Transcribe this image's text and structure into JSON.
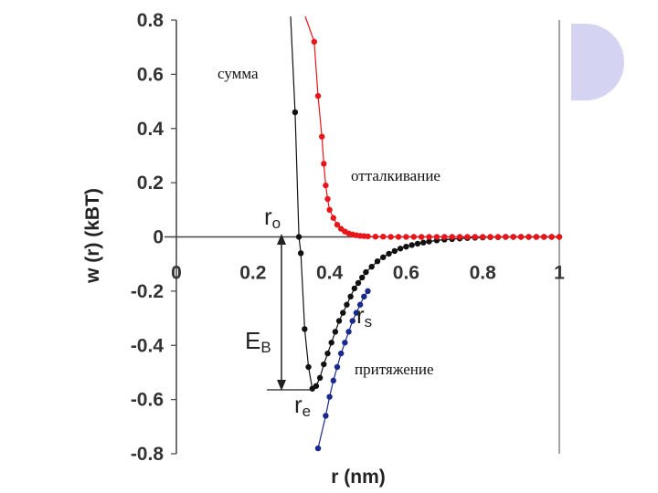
{
  "chart_data": {
    "type": "scatter",
    "title": "",
    "xlabel": "r (nm)",
    "ylabel": "w (r) (kBT)",
    "xlim": [
      0,
      1
    ],
    "ylim": [
      -0.8,
      0.8
    ],
    "x_ticks": [
      "0",
      "0.2",
      "0.4",
      "0.6",
      "0.8",
      "1"
    ],
    "y_ticks": [
      "0.8",
      "0.6",
      "0.4",
      "0.2",
      "0",
      "-0.2",
      "-0.4",
      "-0.6",
      "-0.8"
    ],
    "grid": false,
    "series": [
      {
        "name": "сумма",
        "color": "#111111",
        "points": [
          [
            0.31,
            0.46
          ],
          [
            0.32,
            0.0
          ],
          [
            0.325,
            -0.06
          ],
          [
            0.335,
            -0.34
          ],
          [
            0.345,
            -0.48
          ],
          [
            0.355,
            -0.56
          ],
          [
            0.365,
            -0.55
          ],
          [
            0.375,
            -0.52
          ],
          [
            0.385,
            -0.47
          ],
          [
            0.395,
            -0.43
          ],
          [
            0.405,
            -0.39
          ],
          [
            0.415,
            -0.35
          ],
          [
            0.425,
            -0.31
          ],
          [
            0.435,
            -0.28
          ],
          [
            0.445,
            -0.25
          ],
          [
            0.455,
            -0.22
          ],
          [
            0.465,
            -0.19
          ],
          [
            0.475,
            -0.17
          ],
          [
            0.485,
            -0.15
          ],
          [
            0.495,
            -0.13
          ],
          [
            0.51,
            -0.11
          ],
          [
            0.525,
            -0.09
          ],
          [
            0.54,
            -0.075
          ],
          [
            0.555,
            -0.062
          ],
          [
            0.57,
            -0.052
          ],
          [
            0.585,
            -0.043
          ],
          [
            0.6,
            -0.036
          ],
          [
            0.615,
            -0.03
          ],
          [
            0.63,
            -0.025
          ],
          [
            0.645,
            -0.021
          ],
          [
            0.66,
            -0.017
          ],
          [
            0.68,
            -0.013
          ],
          [
            0.7,
            -0.01
          ],
          [
            0.72,
            -0.008
          ],
          [
            0.74,
            -0.006
          ],
          [
            0.76,
            -0.004
          ],
          [
            0.78,
            -0.003
          ],
          [
            0.8,
            -0.002
          ],
          [
            0.82,
            -0.001
          ],
          [
            0.84,
            -0.001
          ],
          [
            0.86,
            0.0
          ],
          [
            0.88,
            0.0
          ],
          [
            0.9,
            0.0
          ],
          [
            0.92,
            0.0
          ],
          [
            0.94,
            0.0
          ],
          [
            0.96,
            0.0
          ],
          [
            0.98,
            0.0
          ],
          [
            1.0,
            0.0
          ]
        ]
      },
      {
        "name": "отталкивание",
        "color": "#e8161b",
        "points": [
          [
            0.36,
            0.72
          ],
          [
            0.37,
            0.52
          ],
          [
            0.38,
            0.37
          ],
          [
            0.385,
            0.27
          ],
          [
            0.39,
            0.19
          ],
          [
            0.395,
            0.14
          ],
          [
            0.4,
            0.1
          ],
          [
            0.41,
            0.07
          ],
          [
            0.42,
            0.045
          ],
          [
            0.43,
            0.03
          ],
          [
            0.44,
            0.02
          ],
          [
            0.45,
            0.013
          ],
          [
            0.46,
            0.009
          ],
          [
            0.47,
            0.006
          ],
          [
            0.48,
            0.004
          ],
          [
            0.49,
            0.003
          ],
          [
            0.5,
            0.002
          ],
          [
            0.52,
            0.001
          ],
          [
            0.54,
            0.001
          ],
          [
            0.56,
            0.0
          ],
          [
            0.58,
            0.0
          ],
          [
            0.6,
            0.0
          ],
          [
            0.62,
            0.0
          ],
          [
            0.64,
            0.0
          ],
          [
            0.66,
            0.0
          ],
          [
            0.68,
            0.0
          ],
          [
            0.7,
            0.0
          ],
          [
            0.72,
            0.0
          ],
          [
            0.74,
            0.0
          ],
          [
            0.76,
            0.0
          ],
          [
            0.78,
            0.0
          ],
          [
            0.8,
            0.0
          ],
          [
            0.82,
            0.0
          ],
          [
            0.84,
            0.0
          ],
          [
            0.86,
            0.0
          ],
          [
            0.88,
            0.0
          ],
          [
            0.9,
            0.0
          ],
          [
            0.92,
            0.0
          ],
          [
            0.94,
            0.0
          ],
          [
            0.96,
            0.0
          ],
          [
            0.98,
            0.0
          ],
          [
            1.0,
            0.0
          ]
        ]
      },
      {
        "name": "притяжение",
        "color": "#1a2a8c",
        "points": [
          [
            0.37,
            -0.78
          ],
          [
            0.39,
            -0.66
          ],
          [
            0.4,
            -0.59
          ],
          [
            0.41,
            -0.53
          ],
          [
            0.42,
            -0.48
          ],
          [
            0.43,
            -0.43
          ],
          [
            0.44,
            -0.39
          ],
          [
            0.45,
            -0.35
          ],
          [
            0.46,
            -0.31
          ],
          [
            0.47,
            -0.28
          ],
          [
            0.48,
            -0.25
          ],
          [
            0.49,
            -0.22
          ],
          [
            0.5,
            -0.2
          ]
        ]
      }
    ],
    "annotations": {
      "sum_label": "сумма",
      "repulsion_label": "отталкивание",
      "attraction_label": "притяжение",
      "r0": {
        "main": "r",
        "sub": "o"
      },
      "rs": {
        "main": "r",
        "sub": "s"
      },
      "re": {
        "main": "r",
        "sub": "e"
      },
      "eb": {
        "main": "E",
        "sub": "B"
      }
    }
  }
}
